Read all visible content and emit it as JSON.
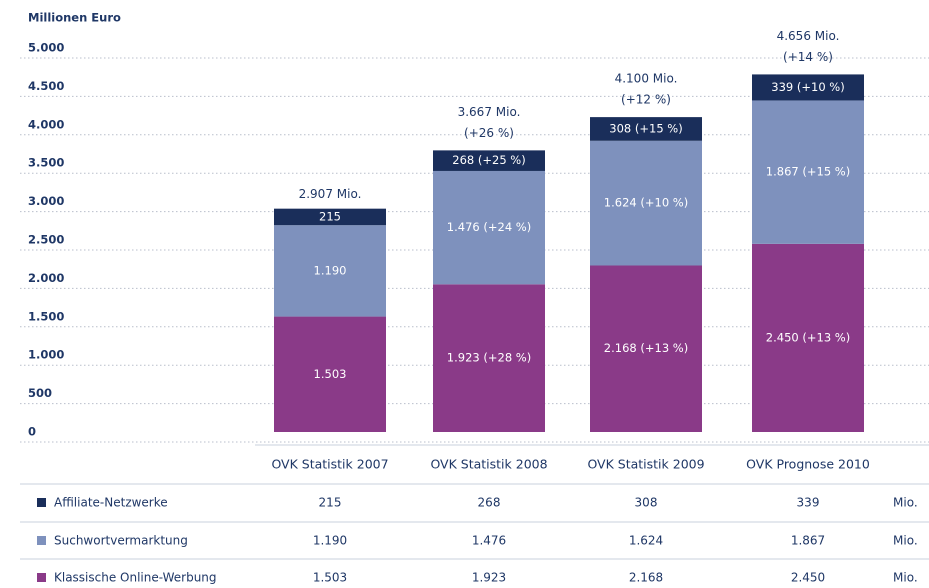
{
  "chart_data": {
    "type": "bar",
    "stacked": true,
    "ylabel": "Millionen Euro",
    "categories": [
      "OVK Statistik 2007",
      "OVK Statistik 2008",
      "OVK Statistik 2009",
      "OVK Prognose 2010"
    ],
    "ylim": [
      0,
      5000
    ],
    "yticks": [
      {
        "value": 0,
        "label": "0"
      },
      {
        "value": 500,
        "label": "500"
      },
      {
        "value": 1000,
        "label": "1.000"
      },
      {
        "value": 1500,
        "label": "1.500"
      },
      {
        "value": 2000,
        "label": "2.000"
      },
      {
        "value": 2500,
        "label": "2.500"
      },
      {
        "value": 3000,
        "label": "3.000"
      },
      {
        "value": 3500,
        "label": "3.500"
      },
      {
        "value": 4000,
        "label": "4.000"
      },
      {
        "value": 4500,
        "label": "4.500"
      },
      {
        "value": 5000,
        "label": "5.000"
      }
    ],
    "grid": true,
    "series": [
      {
        "name": "Klassische Online-Werbung",
        "color": "#8a3a88",
        "values": [
          1503,
          1923,
          2168,
          2450
        ],
        "value_labels": [
          "1.503",
          "1.923 (+28 %)",
          "2.168 (+13 %)",
          "2.450 (+13 %)"
        ],
        "table_labels": [
          "1.503",
          "1.923",
          "2.168",
          "2.450"
        ]
      },
      {
        "name": "Suchwortvermarktung",
        "color": "#7e91bd",
        "values": [
          1190,
          1476,
          1624,
          1867
        ],
        "value_labels": [
          "1.190",
          "1.476 (+24 %)",
          "1.624 (+10 %)",
          "1.867 (+15 %)"
        ],
        "table_labels": [
          "1.190",
          "1.476",
          "1.624",
          "1.867"
        ]
      },
      {
        "name": "Affiliate-Netzwerke",
        "color": "#1a2e5a",
        "values": [
          215,
          268,
          308,
          339
        ],
        "value_labels": [
          "215",
          "268 (+25 %)",
          "308 (+15 %)",
          "339 (+10 %)"
        ],
        "table_labels": [
          "215",
          "268",
          "308",
          "339"
        ]
      }
    ],
    "totals": {
      "values": [
        2907,
        3667,
        4100,
        4656
      ],
      "labels": [
        "2.907 Mio.",
        "3.667 Mio.",
        "4.100 Mio.",
        "4.656 Mio."
      ],
      "growth": [
        null,
        "(+26 %)",
        "(+12 %)",
        "(+14 %)"
      ]
    },
    "unit": "Mio."
  }
}
